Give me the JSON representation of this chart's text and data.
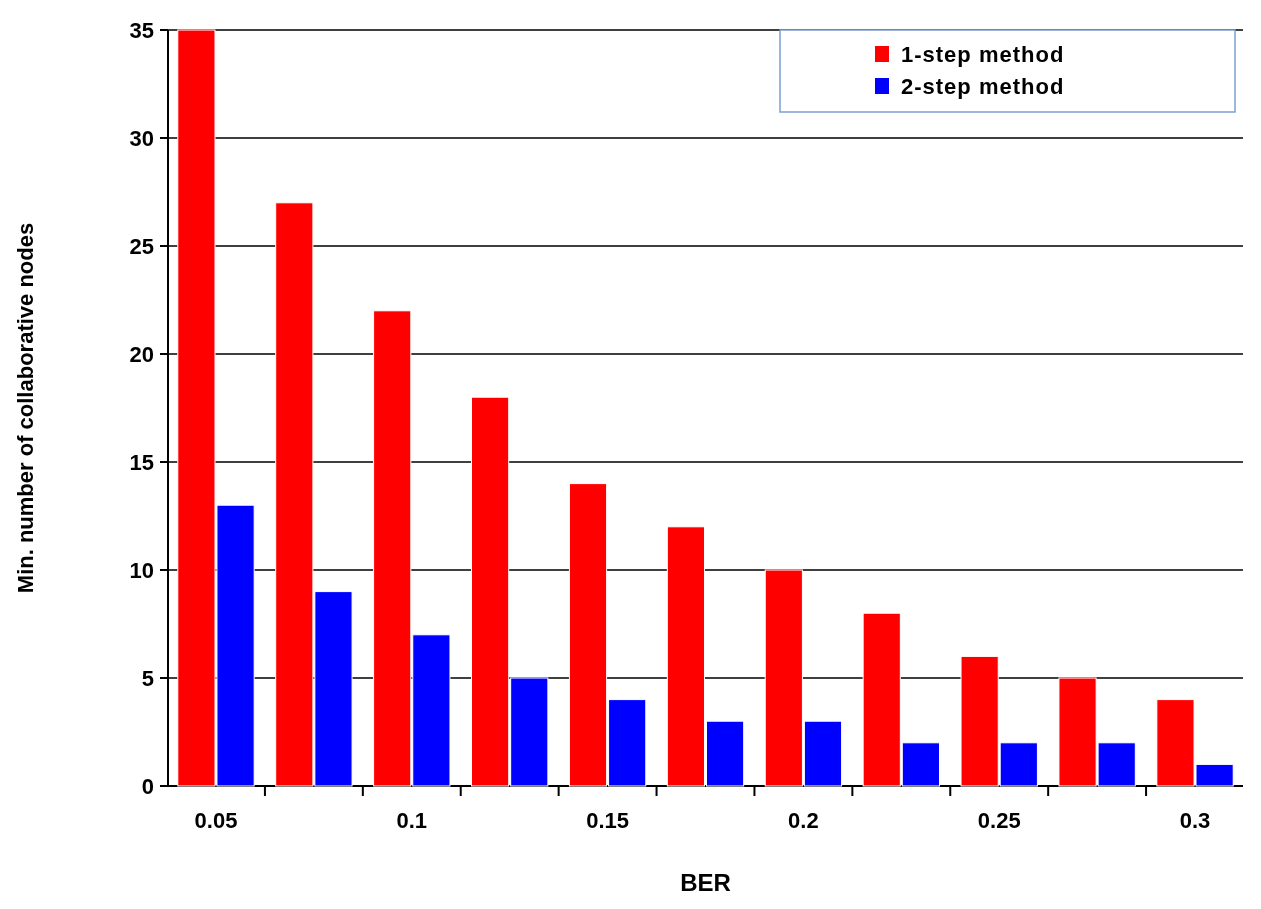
{
  "chart_data": {
    "type": "bar",
    "xlabel": "BER",
    "ylabel": "Min. number of collaborative nodes",
    "categories": [
      "0.05",
      null,
      "0.1",
      null,
      "0.15",
      null,
      "0.2",
      null,
      "0.25",
      null,
      "0.3"
    ],
    "series": [
      {
        "name": "1-step method",
        "color": "#ff0000",
        "values": [
          35,
          27,
          22,
          18,
          14,
          12,
          10,
          8,
          6,
          5,
          4
        ]
      },
      {
        "name": "2-step method",
        "color": "#0000ff",
        "values": [
          13,
          9,
          7,
          5,
          4,
          3,
          3,
          2,
          2,
          2,
          1
        ]
      }
    ],
    "ylim": [
      0,
      35
    ],
    "yticks": [
      0,
      5,
      10,
      15,
      20,
      25,
      30,
      35
    ],
    "grid": "y",
    "legend": "top right"
  }
}
